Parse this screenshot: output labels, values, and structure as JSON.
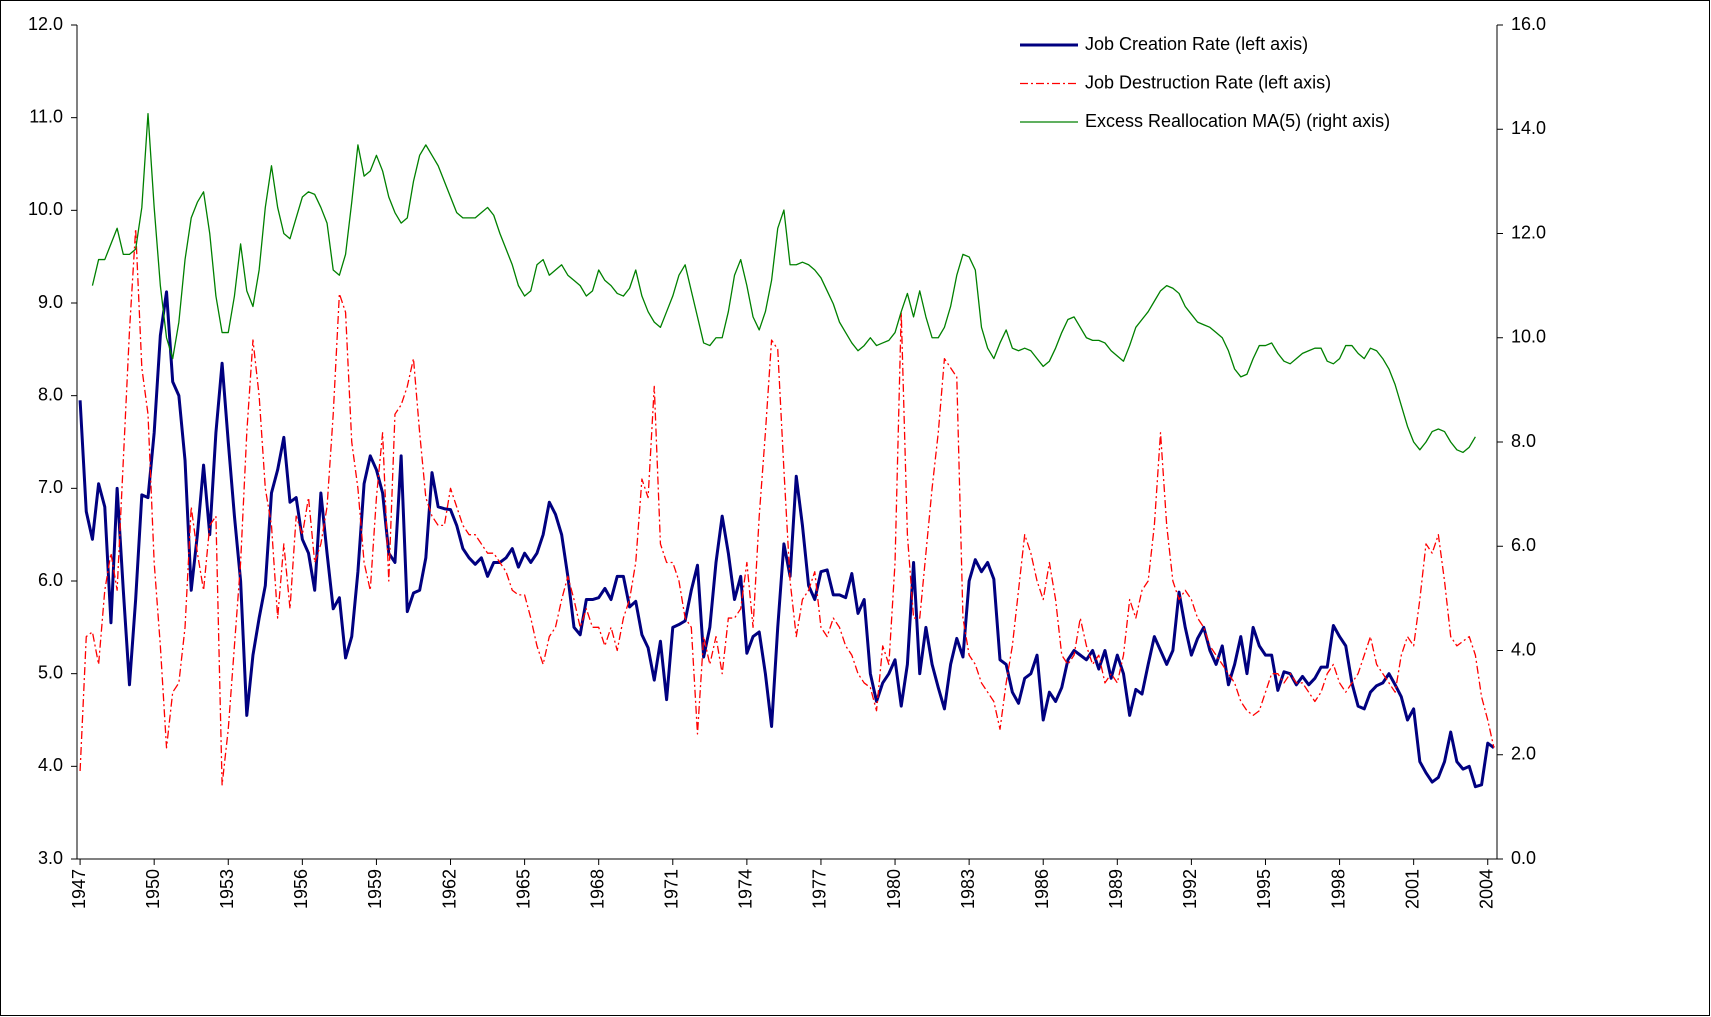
{
  "chart_data": {
    "type": "line",
    "categories": [
      "1947",
      null,
      null,
      null,
      null,
      null,
      null,
      null,
      null,
      null,
      null,
      null,
      "1950",
      null,
      null,
      null,
      null,
      null,
      null,
      null,
      null,
      null,
      null,
      null,
      "1953",
      null,
      null,
      null,
      null,
      null,
      null,
      null,
      null,
      null,
      null,
      null,
      "1956",
      null,
      null,
      null,
      null,
      null,
      null,
      null,
      null,
      null,
      null,
      null,
      "1959",
      null,
      null,
      null,
      null,
      null,
      null,
      null,
      null,
      null,
      null,
      null,
      "1962",
      null,
      null,
      null,
      null,
      null,
      null,
      null,
      null,
      null,
      null,
      null,
      "1965",
      null,
      null,
      null,
      null,
      null,
      null,
      null,
      null,
      null,
      null,
      null,
      "1968",
      null,
      null,
      null,
      null,
      null,
      null,
      null,
      null,
      null,
      null,
      null,
      "1971",
      null,
      null,
      null,
      null,
      null,
      null,
      null,
      null,
      null,
      null,
      null,
      "1974",
      null,
      null,
      null,
      null,
      null,
      null,
      null,
      null,
      null,
      null,
      null,
      "1977",
      null,
      null,
      null,
      null,
      null,
      null,
      null,
      null,
      null,
      null,
      null,
      "1980",
      null,
      null,
      null,
      null,
      null,
      null,
      null,
      null,
      null,
      null,
      null,
      "1983",
      null,
      null,
      null,
      null,
      null,
      null,
      null,
      null,
      null,
      null,
      null,
      "1986",
      null,
      null,
      null,
      null,
      null,
      null,
      null,
      null,
      null,
      null,
      null,
      "1989",
      null,
      null,
      null,
      null,
      null,
      null,
      null,
      null,
      null,
      null,
      null,
      "1992",
      null,
      null,
      null,
      null,
      null,
      null,
      null,
      null,
      null,
      null,
      null,
      "1995",
      null,
      null,
      null,
      null,
      null,
      null,
      null,
      null,
      null,
      null,
      null,
      "1998",
      null,
      null,
      null,
      null,
      null,
      null,
      null,
      null,
      null,
      null,
      null,
      "2001",
      null,
      null,
      null,
      null,
      null,
      null,
      null,
      null,
      null,
      null,
      null,
      "2004",
      null
    ],
    "series": [
      {
        "name": "Job Creation Rate (left axis)",
        "color": "#000080",
        "width": 3,
        "dash": "solid",
        "values": [
          7.95,
          6.75,
          6.45,
          7.05,
          6.8,
          5.55,
          7.0,
          5.9,
          4.88,
          5.8,
          6.93,
          6.9,
          7.6,
          8.65,
          9.12,
          8.15,
          8.0,
          7.3,
          5.9,
          6.5,
          7.25,
          6.5,
          7.6,
          8.35,
          7.5,
          6.7,
          6.0,
          4.55,
          5.2,
          5.6,
          5.95,
          6.95,
          7.2,
          7.55,
          6.85,
          6.9,
          6.45,
          6.3,
          5.9,
          6.95,
          6.3,
          5.7,
          5.82,
          5.17,
          5.4,
          6.1,
          7.05,
          7.35,
          7.2,
          6.95,
          6.3,
          6.2,
          7.35,
          5.67,
          5.87,
          5.9,
          6.25,
          7.17,
          6.8,
          6.78,
          6.77,
          6.6,
          6.35,
          6.25,
          6.18,
          6.25,
          6.05,
          6.2,
          6.2,
          6.25,
          6.35,
          6.15,
          6.3,
          6.2,
          6.3,
          6.5,
          6.85,
          6.72,
          6.5,
          6.05,
          5.5,
          5.42,
          5.8,
          5.8,
          5.82,
          5.92,
          5.8,
          6.05,
          6.05,
          5.72,
          5.78,
          5.42,
          5.28,
          4.93,
          5.35,
          4.72,
          5.5,
          5.53,
          5.57,
          5.9,
          6.17,
          5.18,
          5.5,
          6.2,
          6.7,
          6.3,
          5.8,
          6.05,
          5.22,
          5.4,
          5.45,
          5.0,
          4.43,
          5.5,
          6.4,
          6.05,
          7.13,
          6.6,
          5.95,
          5.8,
          6.1,
          6.12,
          5.85,
          5.85,
          5.82,
          6.08,
          5.65,
          5.8,
          5.0,
          4.7,
          4.9,
          5.0,
          5.15,
          4.65,
          5.1,
          6.2,
          5.0,
          5.5,
          5.1,
          4.85,
          4.62,
          5.1,
          5.38,
          5.18,
          6.0,
          6.23,
          6.1,
          6.2,
          6.02,
          5.15,
          5.1,
          4.8,
          4.68,
          4.95,
          5.0,
          5.2,
          4.5,
          4.8,
          4.7,
          4.85,
          5.15,
          5.25,
          5.2,
          5.15,
          5.25,
          5.05,
          5.25,
          4.95,
          5.2,
          5.0,
          4.55,
          4.83,
          4.78,
          5.1,
          5.4,
          5.25,
          5.1,
          5.25,
          5.88,
          5.5,
          5.2,
          5.38,
          5.5,
          5.25,
          5.1,
          5.3,
          4.88,
          5.1,
          5.4,
          5.0,
          5.5,
          5.3,
          5.2,
          5.2,
          4.82,
          5.02,
          5.0,
          4.88,
          4.97,
          4.88,
          4.95,
          5.07,
          5.07,
          5.52,
          5.4,
          5.3,
          4.9,
          4.65,
          4.62,
          4.8,
          4.87,
          4.9,
          5.0,
          4.88,
          4.75,
          4.5,
          4.62,
          4.05,
          3.93,
          3.83,
          3.88,
          4.05,
          4.37,
          4.05,
          3.97,
          4.0,
          3.78,
          3.8,
          4.25,
          4.2
        ]
      },
      {
        "name": "Job Destruction Rate (left axis)",
        "color": "#ff0000",
        "width": 1.3,
        "dash": "dashdot",
        "values": [
          3.95,
          5.4,
          5.45,
          5.1,
          5.9,
          6.3,
          5.9,
          7.3,
          8.7,
          9.8,
          8.3,
          7.8,
          6.2,
          5.3,
          4.2,
          4.8,
          4.9,
          5.5,
          6.8,
          6.3,
          5.9,
          6.6,
          6.7,
          3.8,
          4.4,
          5.3,
          6.2,
          7.6,
          8.6,
          8.0,
          7.0,
          6.6,
          5.6,
          6.4,
          5.7,
          6.7,
          6.5,
          6.9,
          6.2,
          6.4,
          6.8,
          7.8,
          9.1,
          8.9,
          7.5,
          7.0,
          6.2,
          5.9,
          6.9,
          7.6,
          6.0,
          7.8,
          7.9,
          8.1,
          8.4,
          7.6,
          6.9,
          6.7,
          6.6,
          6.6,
          7.0,
          6.8,
          6.6,
          6.5,
          6.5,
          6.4,
          6.3,
          6.3,
          6.2,
          6.1,
          5.9,
          5.85,
          5.85,
          5.6,
          5.3,
          5.1,
          5.4,
          5.5,
          5.8,
          6.05,
          5.8,
          5.5,
          5.7,
          5.5,
          5.5,
          5.3,
          5.5,
          5.25,
          5.6,
          5.8,
          6.2,
          7.1,
          6.9,
          8.1,
          6.4,
          6.2,
          6.2,
          6.0,
          5.6,
          5.5,
          4.35,
          5.4,
          5.1,
          5.4,
          5.0,
          5.6,
          5.6,
          5.7,
          6.2,
          5.5,
          6.7,
          7.6,
          8.6,
          8.5,
          7.2,
          6.0,
          5.4,
          5.8,
          5.9,
          6.1,
          5.5,
          5.4,
          5.6,
          5.5,
          5.3,
          5.2,
          5.0,
          4.9,
          4.85,
          4.6,
          5.3,
          5.1,
          6.2,
          8.9,
          6.5,
          5.6,
          5.6,
          6.3,
          7.0,
          7.6,
          8.4,
          8.3,
          8.2,
          5.6,
          5.2,
          5.1,
          4.9,
          4.8,
          4.7,
          4.4,
          4.9,
          5.3,
          5.9,
          6.5,
          6.3,
          6.0,
          5.8,
          6.2,
          5.8,
          5.2,
          5.1,
          5.2,
          5.6,
          5.3,
          5.1,
          5.2,
          4.9,
          5.0,
          4.9,
          5.2,
          5.8,
          5.6,
          5.9,
          6.0,
          6.6,
          7.6,
          6.6,
          6.0,
          5.8,
          5.9,
          5.8,
          5.6,
          5.5,
          5.3,
          5.2,
          5.1,
          5.0,
          4.9,
          4.7,
          4.6,
          4.55,
          4.6,
          4.8,
          5.0,
          5.0,
          4.9,
          5.0,
          4.9,
          4.9,
          4.8,
          4.7,
          4.8,
          5.0,
          5.1,
          4.9,
          4.8,
          4.9,
          5.0,
          5.2,
          5.4,
          5.1,
          5.0,
          4.9,
          4.8,
          5.2,
          5.4,
          5.3,
          5.8,
          6.4,
          6.3,
          6.5,
          6.0,
          5.4,
          5.3,
          5.35,
          5.4,
          5.2,
          4.75,
          4.5,
          4.2
        ]
      },
      {
        "name": "Excess Reallocation MA(5) (right axis)",
        "color": "#008000",
        "width": 1.3,
        "dash": "solid",
        "axis": "y2",
        "values": [
          null,
          null,
          11.0,
          11.5,
          11.5,
          11.8,
          12.1,
          11.6,
          11.6,
          11.7,
          12.5,
          14.3,
          12.5,
          11.0,
          10.0,
          9.6,
          10.3,
          11.5,
          12.3,
          12.6,
          12.8,
          12.0,
          10.8,
          10.1,
          10.1,
          10.8,
          11.8,
          10.9,
          10.6,
          11.3,
          12.5,
          13.3,
          12.5,
          12.0,
          11.9,
          12.3,
          12.7,
          12.8,
          12.75,
          12.5,
          12.2,
          11.3,
          11.2,
          11.6,
          12.6,
          13.7,
          13.1,
          13.2,
          13.5,
          13.2,
          12.7,
          12.4,
          12.2,
          12.3,
          13.0,
          13.5,
          13.7,
          13.5,
          13.3,
          13.0,
          12.7,
          12.4,
          12.3,
          12.3,
          12.3,
          12.4,
          12.5,
          12.35,
          12.0,
          11.7,
          11.4,
          11.0,
          10.8,
          10.9,
          11.4,
          11.5,
          11.2,
          11.3,
          11.4,
          11.2,
          11.1,
          11.0,
          10.8,
          10.9,
          11.3,
          11.1,
          11.0,
          10.85,
          10.8,
          10.95,
          11.3,
          10.8,
          10.5,
          10.3,
          10.2,
          10.5,
          10.8,
          11.2,
          11.4,
          10.9,
          10.4,
          9.9,
          9.85,
          10.0,
          10.0,
          10.5,
          11.2,
          11.5,
          11.0,
          10.4,
          10.15,
          10.5,
          11.1,
          12.1,
          12.45,
          11.4,
          11.4,
          11.45,
          11.4,
          11.3,
          11.15,
          10.9,
          10.65,
          10.3,
          10.1,
          9.9,
          9.75,
          9.85,
          10.0,
          9.85,
          9.9,
          9.95,
          10.1,
          10.5,
          10.85,
          10.4,
          10.9,
          10.4,
          10.0,
          10.0,
          10.2,
          10.6,
          11.2,
          11.6,
          11.55,
          11.3,
          10.2,
          9.8,
          9.6,
          9.9,
          10.15,
          9.8,
          9.75,
          9.8,
          9.75,
          9.6,
          9.45,
          9.55,
          9.8,
          10.1,
          10.35,
          10.4,
          10.2,
          10.0,
          9.95,
          9.95,
          9.9,
          9.75,
          9.65,
          9.55,
          9.85,
          10.2,
          10.35,
          10.5,
          10.7,
          10.9,
          11.0,
          10.95,
          10.85,
          10.6,
          10.45,
          10.3,
          10.25,
          10.2,
          10.1,
          10.0,
          9.75,
          9.4,
          9.25,
          9.3,
          9.6,
          9.85,
          9.85,
          9.9,
          9.7,
          9.55,
          9.5,
          9.6,
          9.7,
          9.75,
          9.8,
          9.8,
          9.55,
          9.5,
          9.6,
          9.85,
          9.85,
          9.7,
          9.6,
          9.8,
          9.75,
          9.6,
          9.4,
          9.1,
          8.7,
          8.3,
          8.0,
          7.85,
          8.0,
          8.2,
          8.25,
          8.2,
          8.0,
          7.85,
          7.8,
          7.9,
          8.1,
          null,
          null,
          null
        ]
      }
    ],
    "ylim": [
      3,
      12
    ],
    "yticks": [
      {
        "value": 3,
        "label": "3.0"
      },
      {
        "value": 4,
        "label": "4.0"
      },
      {
        "value": 5,
        "label": "5.0"
      },
      {
        "value": 6,
        "label": "6.0"
      },
      {
        "value": 7,
        "label": "7.0"
      },
      {
        "value": 8,
        "label": "8.0"
      },
      {
        "value": 9,
        "label": "9.0"
      },
      {
        "value": 10,
        "label": "10.0"
      },
      {
        "value": 11,
        "label": "11.0"
      },
      {
        "value": 12,
        "label": "12.0"
      }
    ],
    "y2lim": [
      0,
      16
    ],
    "y2ticks": [
      {
        "value": 0,
        "label": "0.0"
      },
      {
        "value": 2,
        "label": "2.0"
      },
      {
        "value": 4,
        "label": "4.0"
      },
      {
        "value": 6,
        "label": "6.0"
      },
      {
        "value": 8,
        "label": "8.0"
      },
      {
        "value": 10,
        "label": "10.0"
      },
      {
        "value": 12,
        "label": "12.0"
      },
      {
        "value": 14,
        "label": "14.0"
      },
      {
        "value": 16,
        "label": "16.0"
      }
    ],
    "grid": false,
    "legend": "upper right"
  }
}
